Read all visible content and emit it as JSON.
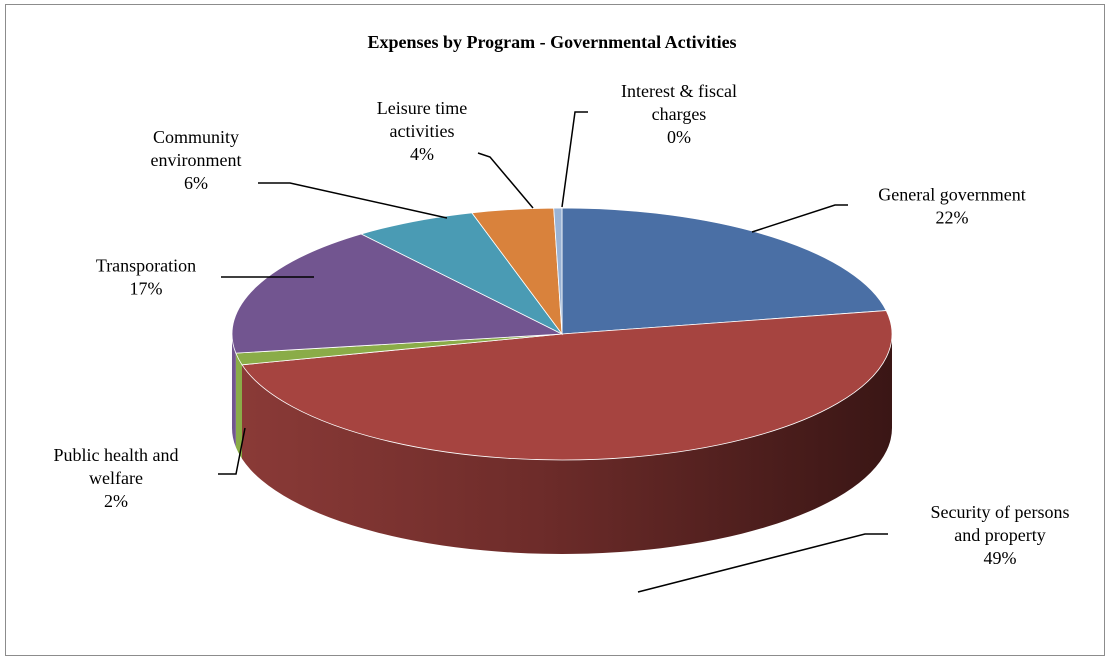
{
  "chart_data": {
    "type": "pie",
    "title": "Expenses by Program - Governmental Activities",
    "slices": [
      {
        "label_lines": [
          "General government"
        ],
        "pct_label": "22%",
        "value": 22,
        "color": "#4a6fa5"
      },
      {
        "label_lines": [
          "Security of persons",
          "and property"
        ],
        "pct_label": "49%",
        "value": 49,
        "color": "#a64440"
      },
      {
        "label_lines": [
          "Public health and",
          "welfare"
        ],
        "pct_label": "2%",
        "value": 1.5,
        "color": "#8aac48"
      },
      {
        "label_lines": [
          "Transporation"
        ],
        "pct_label": "17%",
        "value": 17,
        "color": "#725590"
      },
      {
        "label_lines": [
          "Community",
          "environment"
        ],
        "pct_label": "6%",
        "value": 6,
        "color": "#4a9bb4"
      },
      {
        "label_lines": [
          "Leisure time",
          "activities"
        ],
        "pct_label": "4%",
        "value": 4,
        "color": "#d9823c"
      },
      {
        "label_lines": [
          "Interest & fiscal",
          "charges"
        ],
        "pct_label": "0%",
        "value": 0.4,
        "color": "#9ab3d5"
      }
    ]
  }
}
